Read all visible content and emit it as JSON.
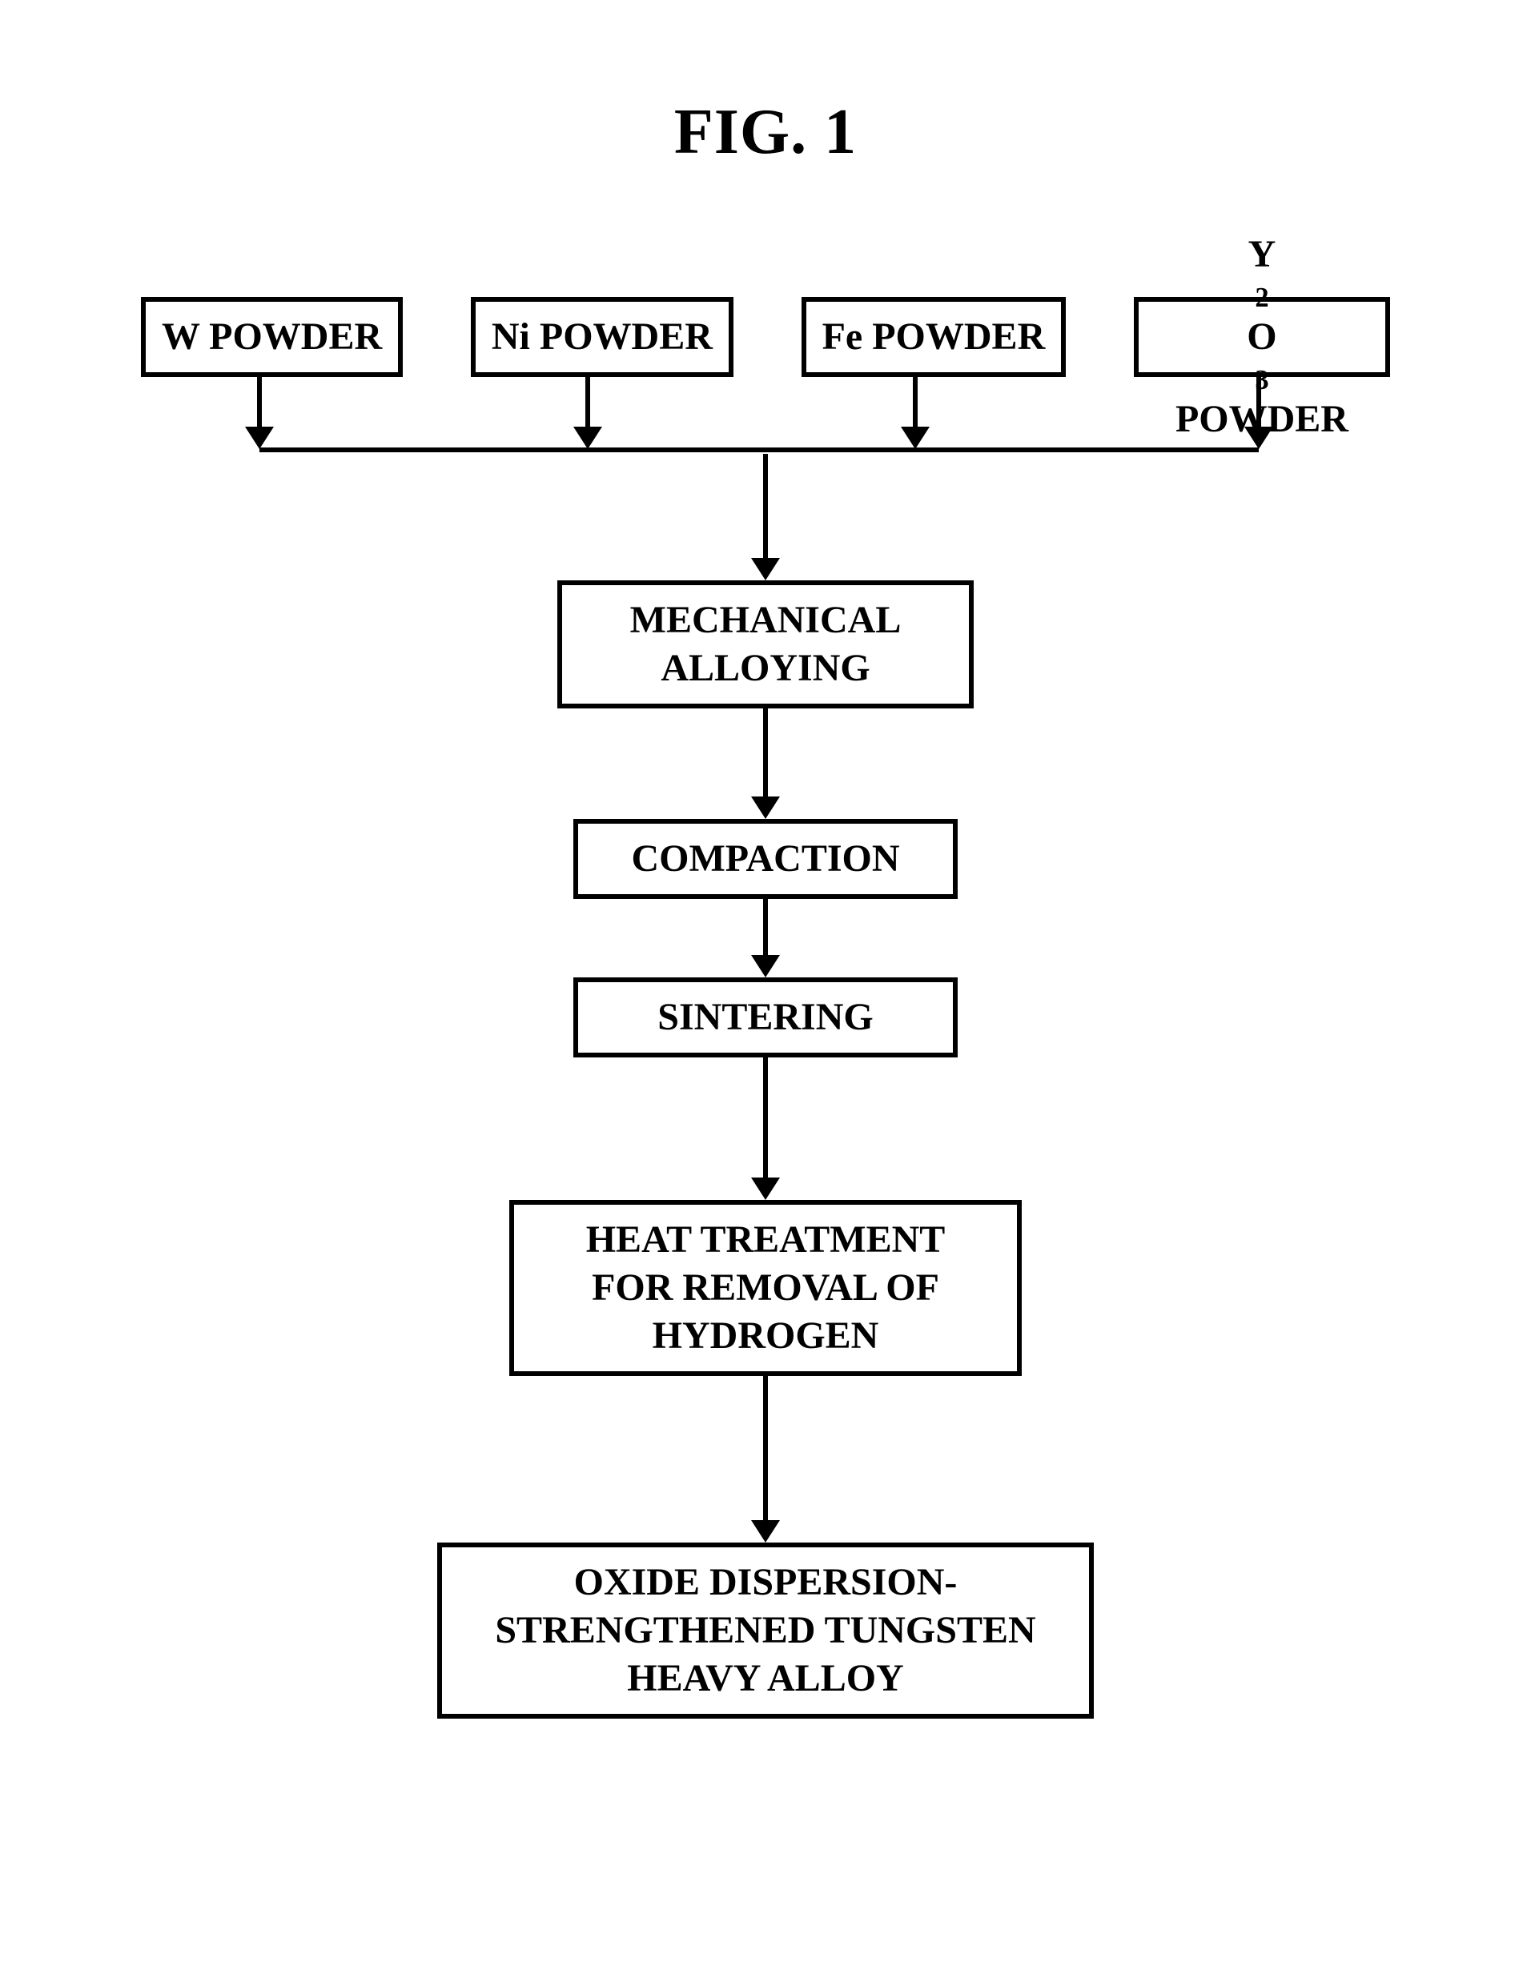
{
  "figure": {
    "title": "FIG. 1",
    "title_fontsize": 80,
    "title_fontweight": "bold"
  },
  "flowchart": {
    "type": "flowchart",
    "background_color": "#ffffff",
    "border_color": "#000000",
    "border_width": 6,
    "text_color": "#000000",
    "font_family": "Times New Roman",
    "node_font_weight": "bold",
    "inputs": [
      {
        "id": "w",
        "label_html": "W POWDER",
        "x_percent": 9.5
      },
      {
        "id": "ni",
        "label_html": "Ni POWDER",
        "x_percent": 35.8
      },
      {
        "id": "fe",
        "label_html": "Fe POWDER",
        "x_percent": 62.0
      },
      {
        "id": "y",
        "label_html": "Y<span class=\"sub\">2</span>O<span class=\"sub\">3</span> POWDER",
        "x_percent": 89.5
      }
    ],
    "input_drop_shaft_height": 62,
    "merge_bar": {
      "left_percent": 9.5,
      "right_percent": 89.5
    },
    "merge_drop": {
      "shaft_height": 130
    },
    "steps": [
      {
        "id": "mech",
        "label": "MECHANICAL\nALLOYING",
        "width_class": "w-medium",
        "arrow_after_height": 110
      },
      {
        "id": "comp",
        "label": "COMPACTION",
        "width_class": "w-small",
        "arrow_after_height": 70
      },
      {
        "id": "sint",
        "label": "SINTERING",
        "width_class": "w-small",
        "arrow_after_height": 150
      },
      {
        "id": "heat",
        "label": "HEAT TREATMENT\nFOR REMOVAL OF\nHYDROGEN",
        "width_class": "w-large",
        "arrow_after_height": 180
      },
      {
        "id": "final",
        "label": "OXIDE DISPERSION-\nSTRENGTHENED TUNGSTEN\nHEAVY ALLOY",
        "width_class": "w-xlarge",
        "arrow_after_height": null
      }
    ]
  }
}
